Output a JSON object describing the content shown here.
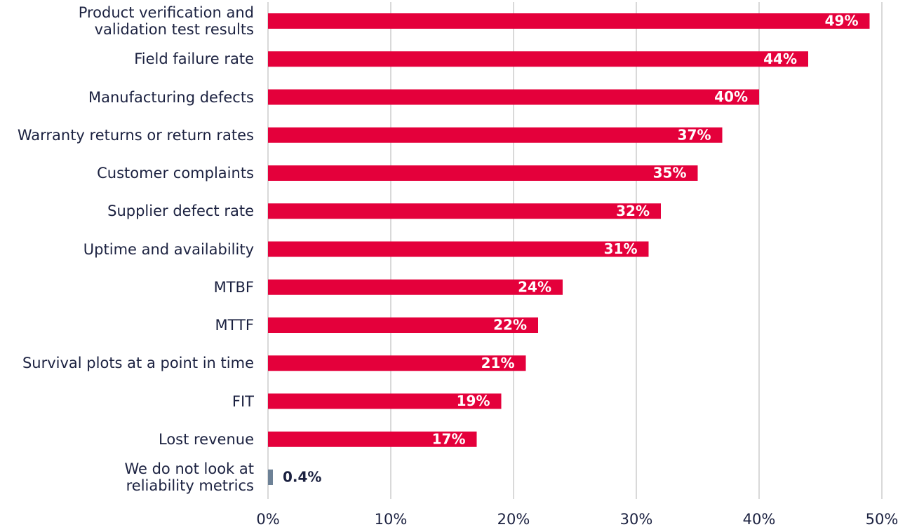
{
  "chart_data": {
    "type": "bar",
    "orientation": "horizontal",
    "categories": [
      "Product verification and\nvalidation test results",
      "Field failure rate",
      "Manufacturing defects",
      "Warranty returns or return rates",
      "Customer complaints",
      "Supplier defect rate",
      "Uptime and availability",
      "MTBF",
      "MTTF",
      "Survival plots at a point in time",
      "FIT",
      "Lost revenue",
      "We do not look at\nreliability metrics"
    ],
    "values": [
      49,
      44,
      40,
      37,
      35,
      32,
      31,
      24,
      22,
      21,
      19,
      17,
      0.4
    ],
    "value_labels": [
      "49%",
      "44%",
      "40%",
      "37%",
      "35%",
      "32%",
      "31%",
      "24%",
      "22%",
      "21%",
      "19%",
      "17%",
      "0.4%"
    ],
    "colors": [
      "#e4003b",
      "#e4003b",
      "#e4003b",
      "#e4003b",
      "#e4003b",
      "#e4003b",
      "#e4003b",
      "#e4003b",
      "#e4003b",
      "#e4003b",
      "#e4003b",
      "#e4003b",
      "#6d8196"
    ],
    "xlim": [
      0,
      50
    ],
    "xticks": [
      {
        "value": 0,
        "label": "0%"
      },
      {
        "value": 10,
        "label": "10%"
      },
      {
        "value": 20,
        "label": "20%"
      },
      {
        "value": 30,
        "label": "30%"
      },
      {
        "value": 40,
        "label": "40%"
      },
      {
        "value": 50,
        "label": "50%"
      }
    ],
    "grid": true
  }
}
